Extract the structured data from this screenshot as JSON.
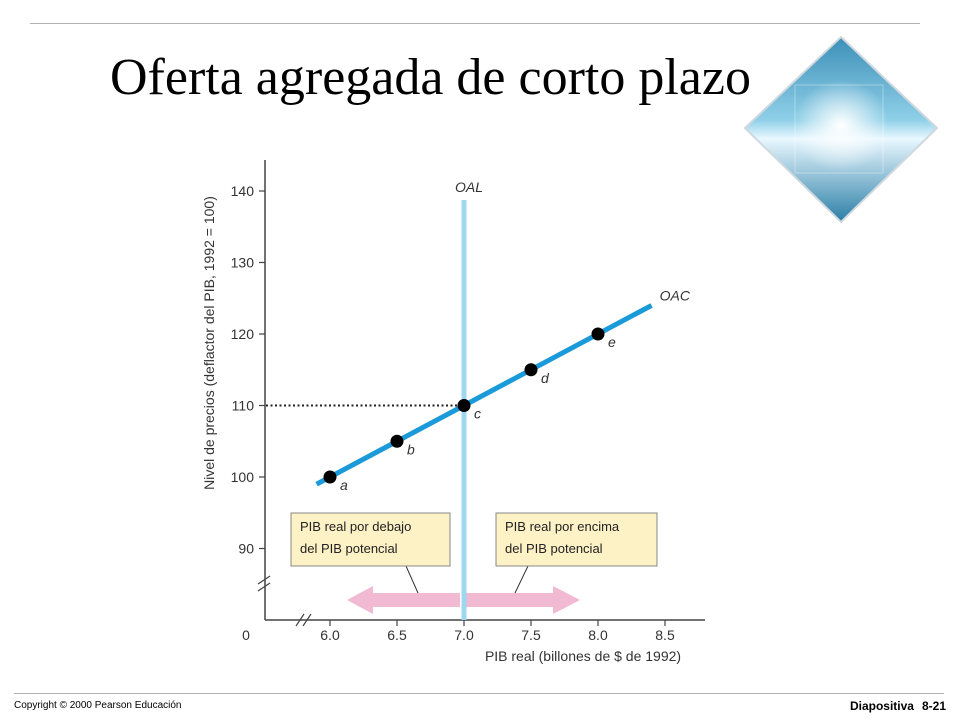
{
  "slide": {
    "title": "Oferta agregada de corto plazo",
    "copyright": "Copyright © 2000 Pearson Educación",
    "slide_label": "Diapositiva",
    "slide_number": "8-21",
    "logo_icon": "diamond-beach-photo-icon"
  },
  "chart_data": {
    "type": "line",
    "title": "",
    "xlabel": "PIB real (billones de $ de 1992)",
    "ylabel": "Nivel de precios (deflactor del PIB, 1992 = 100)",
    "xlim": [
      6.0,
      8.5
    ],
    "ylim": [
      90,
      140
    ],
    "x_origin_label": "0",
    "y_origin_label": "0",
    "x_ticks": [
      "6.0",
      "6.5",
      "7.0",
      "7.5",
      "8.0",
      "8.5"
    ],
    "x_tick_values": [
      6.0,
      6.5,
      7.0,
      7.5,
      8.0,
      8.5
    ],
    "y_ticks": [
      "90",
      "100",
      "110",
      "120",
      "130",
      "140"
    ],
    "y_tick_values": [
      90,
      100,
      110,
      120,
      130,
      140
    ],
    "axis_breaks": true,
    "grid": false,
    "colors": {
      "oac": "#1a9ad8",
      "oal": "#9fd6f0",
      "arrow": "#f2b9d3",
      "box_fill": "#fdf1c6",
      "box_border": "#888888"
    },
    "series": [
      {
        "name": "OAC",
        "x": [
          6.0,
          6.5,
          7.0,
          7.5,
          8.0
        ],
        "y": [
          100,
          105,
          110,
          115,
          120
        ],
        "line_x": [
          5.9,
          8.4
        ],
        "line_y": [
          99,
          124
        ]
      }
    ],
    "points": [
      {
        "label": "a",
        "x": 6.0,
        "y": 100
      },
      {
        "label": "b",
        "x": 6.5,
        "y": 105
      },
      {
        "label": "c",
        "x": 7.0,
        "y": 110
      },
      {
        "label": "d",
        "x": 7.5,
        "y": 115
      },
      {
        "label": "e",
        "x": 8.0,
        "y": 120
      }
    ],
    "vertical_line": {
      "name": "OAL",
      "x": 7.0
    },
    "reference": {
      "y": 110,
      "style": "dotted"
    },
    "annotations": {
      "left_box": [
        "PIB real por debajo",
        "del PIB potencial"
      ],
      "right_box": [
        "PIB real por encima",
        "del PIB potencial"
      ]
    }
  }
}
